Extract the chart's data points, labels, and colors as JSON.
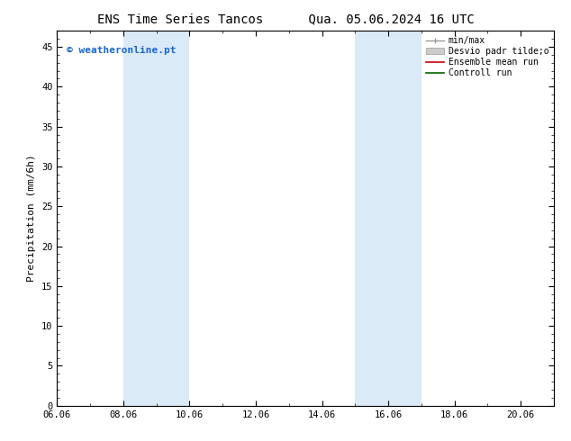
{
  "title_left": "ENS Time Series Tancos",
  "title_right": "Qua. 05.06.2024 16 UTC",
  "ylabel": "Precipitation (mm/6h)",
  "ylim": [
    0,
    47
  ],
  "yticks": [
    0,
    5,
    10,
    15,
    20,
    25,
    30,
    35,
    40,
    45
  ],
  "xtick_labels": [
    "06.06",
    "08.06",
    "10.06",
    "12.06",
    "14.06",
    "16.06",
    "18.06",
    "20.06"
  ],
  "xtick_positions": [
    0,
    2,
    4,
    6,
    8,
    10,
    12,
    14
  ],
  "xlim": [
    0,
    15
  ],
  "shaded_regions": [
    {
      "xstart": 2.0,
      "xend": 3.0
    },
    {
      "xstart": 3.0,
      "xend": 4.0
    },
    {
      "xstart": 9.0,
      "xend": 10.0
    },
    {
      "xstart": 10.0,
      "xend": 11.0
    }
  ],
  "shaded_color": "#daeaf6",
  "background_color": "#ffffff",
  "watermark_text": "© weatheronline.pt",
  "watermark_color": "#1a66cc",
  "legend_items": [
    {
      "label": "min/max",
      "color": "#999999",
      "lw": 1.0
    },
    {
      "label": "Desvio padr tilde;o",
      "color": "#cccccc",
      "lw": 6
    },
    {
      "label": "Ensemble mean run",
      "color": "#cc0000",
      "lw": 1.2
    },
    {
      "label": "Controll run",
      "color": "#006600",
      "lw": 1.2
    }
  ],
  "title_fontsize": 10,
  "tick_fontsize": 7.5,
  "ylabel_fontsize": 8,
  "legend_fontsize": 7
}
